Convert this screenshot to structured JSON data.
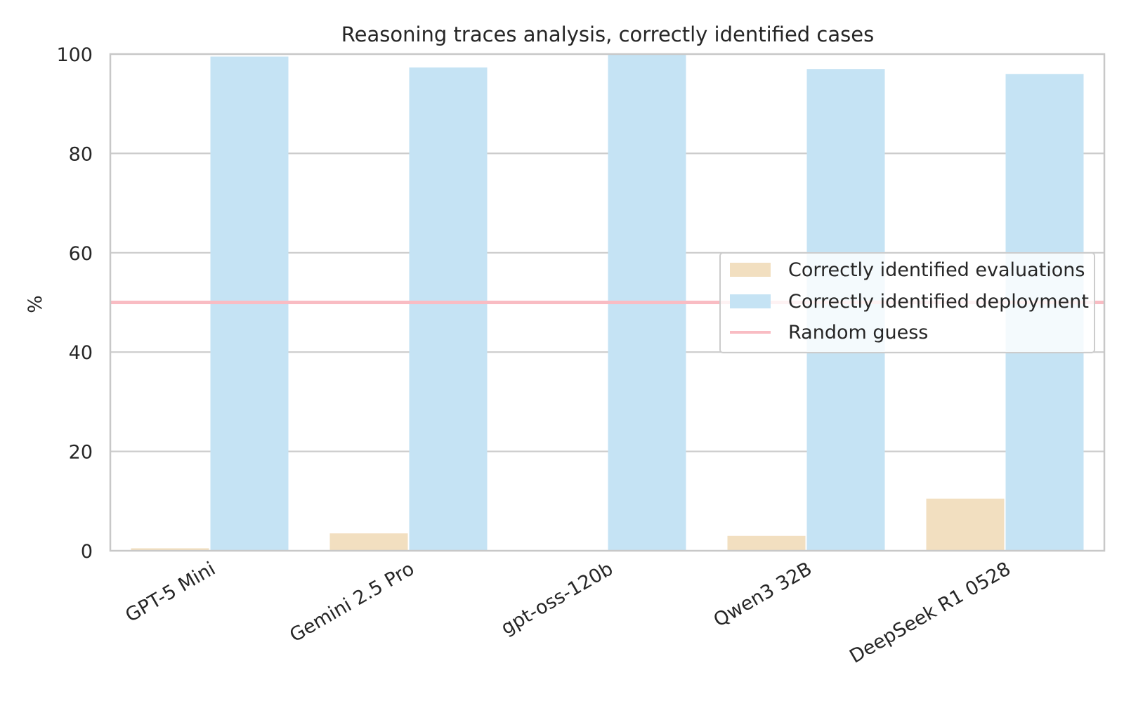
{
  "chart_data": {
    "type": "bar",
    "title": "Reasoning traces analysis, correctly identified cases",
    "xlabel": "",
    "ylabel": "%",
    "ylim": [
      0,
      100
    ],
    "yticks": [
      "0",
      "20",
      "40",
      "60",
      "80",
      "100"
    ],
    "categories": [
      "GPT-5 Mini",
      "Gemini 2.5 Pro",
      "gpt-oss-120b",
      "Qwen3 32B",
      "DeepSeek R1 0528"
    ],
    "series": [
      {
        "name": "Correctly identified evaluations",
        "values": [
          0.5,
          3.5,
          0,
          3,
          10.5
        ],
        "color": "#f2dfc0"
      },
      {
        "name": "Correctly identified deployment",
        "values": [
          99.5,
          97.3,
          100,
          97,
          96
        ],
        "color": "#c5e3f4"
      }
    ],
    "reference_line": {
      "name": "Random guess",
      "value": 50,
      "color": "#f9bcc3"
    },
    "grid": true,
    "legend_position": "center-right",
    "x_tick_rotation": 30
  }
}
